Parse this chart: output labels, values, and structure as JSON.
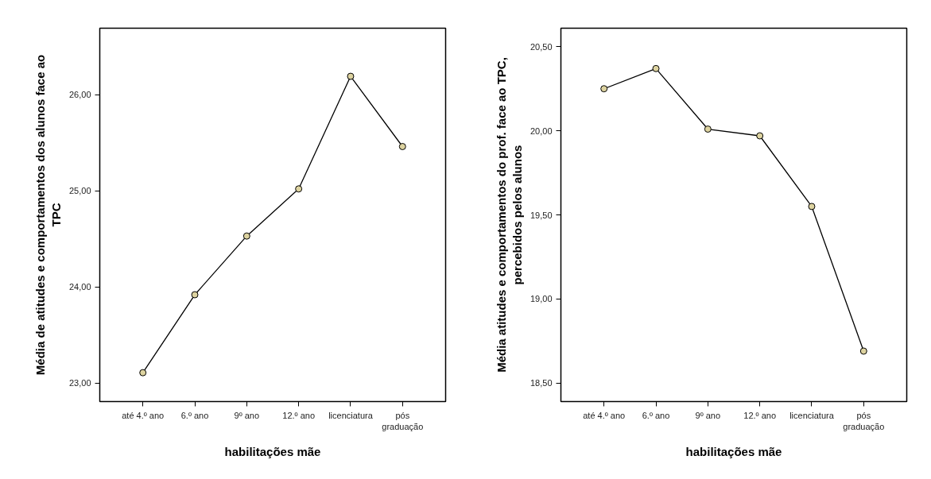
{
  "chart_data": [
    {
      "type": "line",
      "xlabel": "habilitações mãe",
      "ylabel": "Média de atitudes e comportamentos dos alunos face ao\nTPC",
      "categories": [
        "até 4.º ano",
        "6.º ano",
        "9º ano",
        "12.º ano",
        "licenciatura",
        "pós\ngraduação"
      ],
      "series": [
        {
          "color": "#000000",
          "values": [
            23.11,
            23.92,
            24.53,
            25.02,
            26.19,
            25.46
          ]
        }
      ],
      "marker": "circle",
      "line_style": "solid",
      "grid": false,
      "ylim": [
        22.81,
        26.69
      ],
      "yticks": [
        {
          "value": 23,
          "label": "23,00"
        },
        {
          "value": 24,
          "label": "24,00"
        },
        {
          "value": 25,
          "label": "25,00"
        },
        {
          "value": 26,
          "label": "26,00"
        }
      ]
    },
    {
      "type": "line",
      "xlabel": "habilitações mãe",
      "ylabel": "Média atitudes e comportamentos do prof. face ao TPC,\npercebidos pelos alunos",
      "categories": [
        "até 4.º ano",
        "6.º ano",
        "9º ano",
        "12.º ano",
        "licenciatura",
        "pós\ngraduação"
      ],
      "series": [
        {
          "color": "#000000",
          "values": [
            20.25,
            20.37,
            20.01,
            19.97,
            19.55,
            18.69
          ]
        }
      ],
      "marker": "circle",
      "line_style": "solid",
      "grid": false,
      "ylim": [
        18.39,
        20.61
      ],
      "yticks": [
        {
          "value": 18.5,
          "label": "18,50"
        },
        {
          "value": 19,
          "label": "19,00"
        },
        {
          "value": 19.5,
          "label": "19,50"
        },
        {
          "value": 20,
          "label": "20,00"
        },
        {
          "value": 20.5,
          "label": "20,50"
        }
      ]
    }
  ]
}
